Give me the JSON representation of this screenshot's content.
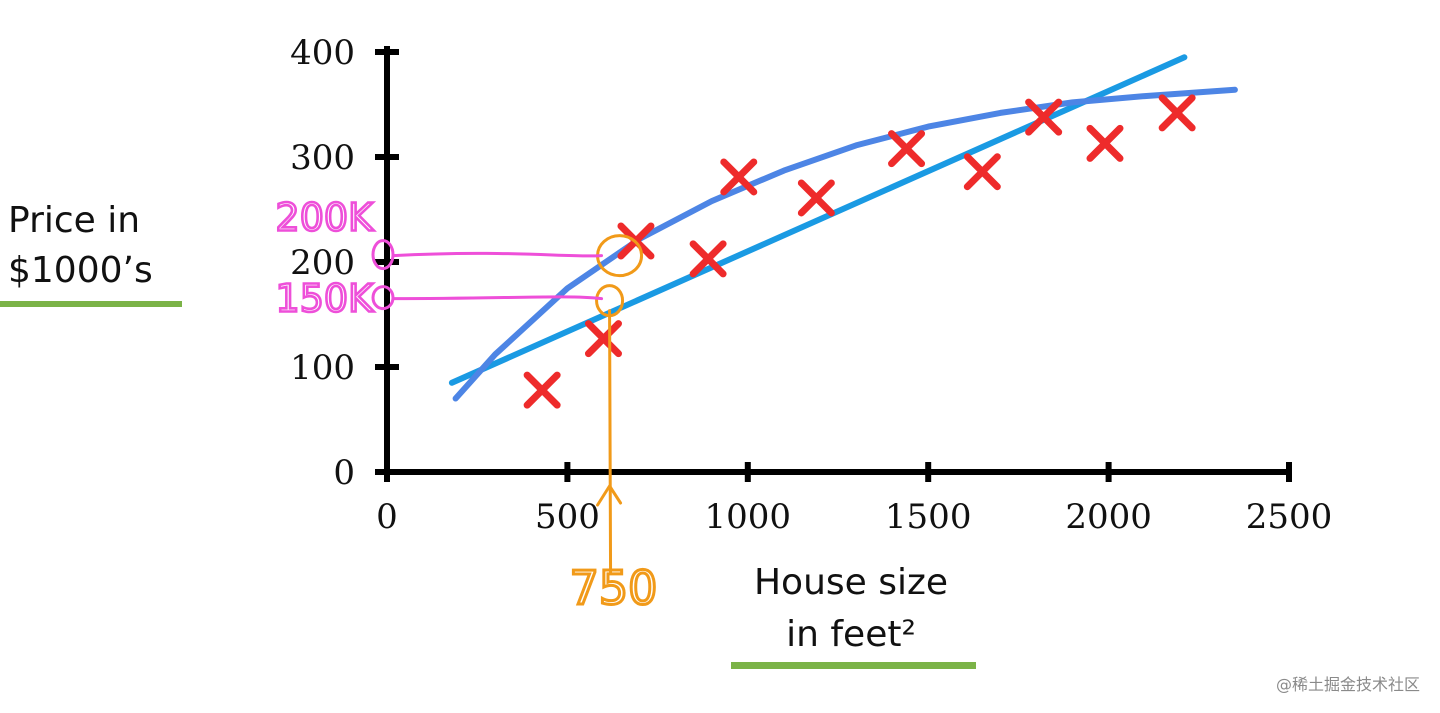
{
  "chart_data": {
    "type": "scatter",
    "xlabel_lines": [
      "House size",
      "in feet²"
    ],
    "ylabel_lines": [
      "Price in",
      "$1000’s"
    ],
    "xlim": [
      0,
      2500
    ],
    "ylim": [
      0,
      400
    ],
    "x_ticks": [
      0,
      500,
      1000,
      1500,
      2000,
      2500
    ],
    "y_ticks": [
      0,
      100,
      200,
      300,
      400
    ],
    "x_tick_labels": [
      "0",
      "500",
      "1000",
      "1500",
      "2000",
      "2500"
    ],
    "y_tick_labels": [
      "0",
      "100",
      "200",
      "300",
      "400"
    ],
    "grid": false,
    "points": [
      {
        "x": 430,
        "y": 78
      },
      {
        "x": 600,
        "y": 127
      },
      {
        "x": 690,
        "y": 220
      },
      {
        "x": 890,
        "y": 203
      },
      {
        "x": 975,
        "y": 281
      },
      {
        "x": 1190,
        "y": 261
      },
      {
        "x": 1440,
        "y": 308
      },
      {
        "x": 1650,
        "y": 286
      },
      {
        "x": 1820,
        "y": 338
      },
      {
        "x": 1990,
        "y": 313
      },
      {
        "x": 2190,
        "y": 342
      }
    ],
    "fits": [
      {
        "kind": "straight line",
        "x": [
          180,
          2210
        ],
        "y": [
          85,
          395
        ],
        "color": "#1a9ae3"
      },
      {
        "kind": "curve",
        "x": [
          190,
          300,
          500,
          700,
          900,
          1100,
          1300,
          1500,
          1700,
          1900,
          2100,
          2350
        ],
        "y": [
          70,
          112,
          175,
          222,
          258,
          287,
          311,
          329,
          342,
          352,
          358,
          364
        ],
        "color": "#4d85e5"
      }
    ],
    "annotations": {
      "x_marker": {
        "text": "750",
        "x": 700
      },
      "y_markers": [
        {
          "text": "200K",
          "y": 208
        },
        {
          "text": "150K",
          "y": 167
        }
      ]
    },
    "colors": {
      "axes": "#000000",
      "points": "#ee2b2b",
      "pink": "#ee4fd9",
      "orange": "#f19a19",
      "underline": "#7bb347"
    }
  },
  "watermark": "@稀土掘金技术社区"
}
